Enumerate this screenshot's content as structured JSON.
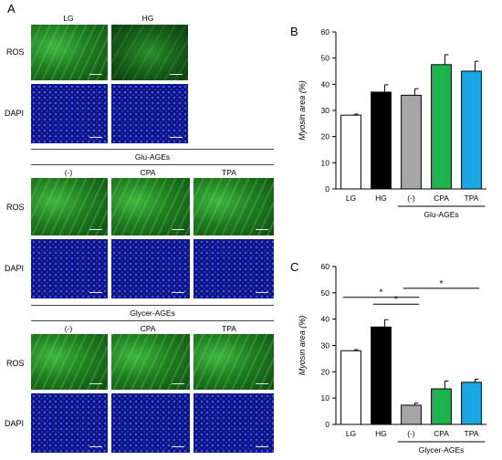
{
  "figure": {
    "panel_a_letter": "A",
    "panel_b_letter": "B",
    "panel_c_letter": "C",
    "col_lg": "LG",
    "col_hg": "HG",
    "col_minus": "(-)",
    "col_cpa": "CPA",
    "col_tpa": "TPA",
    "row_ros": "ROS",
    "row_dapi": "DAPI",
    "group_glu": "Glu-AGEs",
    "group_glycer": "Glycer-AGEs"
  },
  "chart_data": [
    {
      "type": "bar",
      "panel": "B",
      "categories": [
        "LG",
        "HG",
        "(-)",
        "CPA",
        "TPA"
      ],
      "values": [
        28.2,
        37.0,
        35.8,
        47.5,
        45.0
      ],
      "errors": [
        0.4,
        2.8,
        2.5,
        3.8,
        3.8
      ],
      "colors": [
        "#ffffff",
        "#000000",
        "#a6a6a6",
        "#1db34f",
        "#1aa7e6"
      ],
      "ylabel": "Myosin area (%)",
      "ylim": [
        0,
        60
      ],
      "yticks": [
        0,
        10,
        20,
        30,
        40,
        50,
        60
      ],
      "group_label": "Glu-AGEs",
      "significance": []
    },
    {
      "type": "bar",
      "panel": "C",
      "categories": [
        "LG",
        "HG",
        "(-)",
        "CPA",
        "TPA"
      ],
      "values": [
        28.0,
        37.0,
        7.3,
        13.5,
        16.0
      ],
      "errors": [
        0.4,
        2.8,
        0.8,
        3.0,
        1.2
      ],
      "colors": [
        "#ffffff",
        "#000000",
        "#a6a6a6",
        "#1db34f",
        "#1aa7e6"
      ],
      "ylabel": "Myosin area (%)",
      "ylim": [
        0,
        60
      ],
      "yticks": [
        0,
        10,
        20,
        30,
        40,
        50,
        60
      ],
      "group_label": "Glycer-AGEs",
      "significance": [
        {
          "from": "LG",
          "to": "(-)",
          "label": "*"
        },
        {
          "from": "HG",
          "to": "(-)",
          "label": "*"
        },
        {
          "from": "(-)",
          "to": "TPA",
          "label": "*"
        }
      ]
    }
  ]
}
